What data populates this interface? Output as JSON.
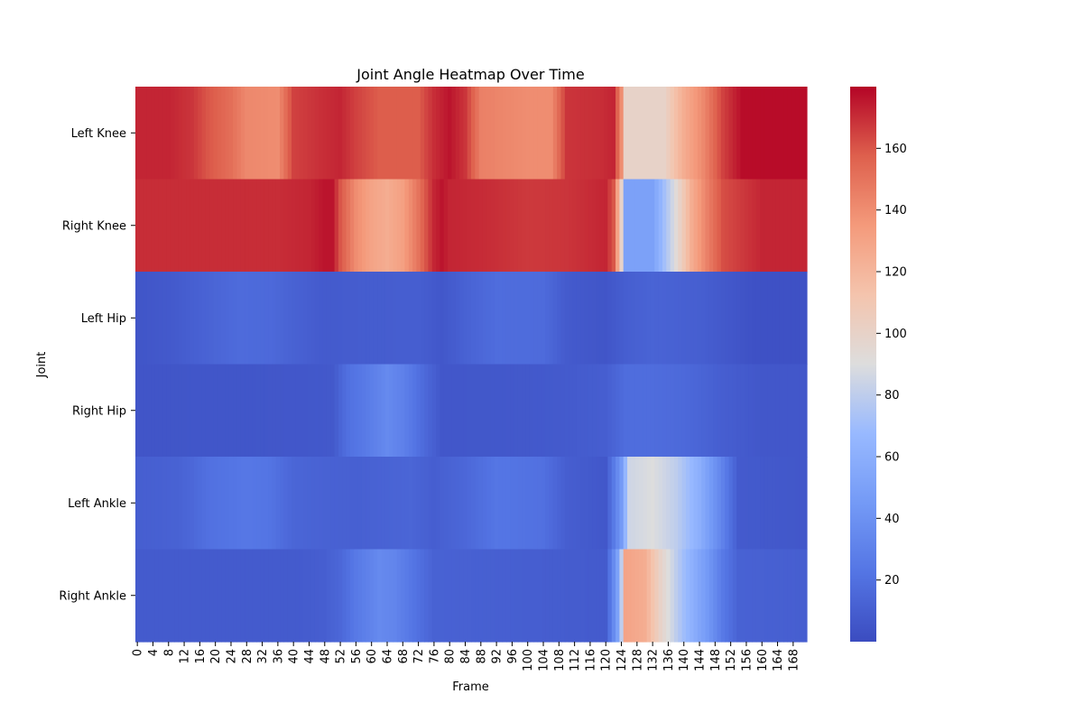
{
  "chart_data": {
    "type": "heatmap",
    "title": "Joint Angle Heatmap Over Time",
    "xlabel": "Frame",
    "ylabel": "Joint",
    "colormap": "coolwarm",
    "colorbar": {
      "min": 0,
      "max": 180,
      "ticks": [
        20,
        40,
        60,
        80,
        100,
        120,
        140,
        160
      ]
    },
    "rows": [
      "Left Knee",
      "Right Knee",
      "Left Hip",
      "Right Hip",
      "Left Ankle",
      "Right Ankle"
    ],
    "frame_count": 172,
    "x_tick_step": 4,
    "profiles": [
      {
        "row": "Left Knee",
        "anchors": [
          [
            0,
            172
          ],
          [
            8,
            172
          ],
          [
            14,
            168
          ],
          [
            18,
            160
          ],
          [
            24,
            152
          ],
          [
            28,
            142
          ],
          [
            36,
            140
          ],
          [
            40,
            165
          ],
          [
            48,
            170
          ],
          [
            52,
            172
          ],
          [
            56,
            165
          ],
          [
            62,
            158
          ],
          [
            72,
            158
          ],
          [
            76,
            170
          ],
          [
            80,
            176
          ],
          [
            84,
            168
          ],
          [
            88,
            145
          ],
          [
            100,
            140
          ],
          [
            106,
            140
          ],
          [
            110,
            168
          ],
          [
            119,
            170
          ],
          [
            122,
            172
          ],
          [
            124,
            140
          ],
          [
            125,
            100
          ],
          [
            135,
            100
          ],
          [
            140,
            125
          ],
          [
            145,
            142
          ],
          [
            150,
            165
          ],
          [
            155,
            178
          ],
          [
            171,
            178
          ]
        ]
      },
      {
        "row": "Right Knee",
        "anchors": [
          [
            0,
            170
          ],
          [
            36,
            170
          ],
          [
            44,
            172
          ],
          [
            48,
            176
          ],
          [
            50,
            176
          ],
          [
            52,
            160
          ],
          [
            56,
            140
          ],
          [
            60,
            130
          ],
          [
            64,
            125
          ],
          [
            68,
            132
          ],
          [
            72,
            150
          ],
          [
            76,
            172
          ],
          [
            78,
            176
          ],
          [
            80,
            172
          ],
          [
            90,
            170
          ],
          [
            100,
            167
          ],
          [
            110,
            168
          ],
          [
            120,
            172
          ],
          [
            122,
            160
          ],
          [
            124,
            100
          ],
          [
            125,
            50
          ],
          [
            132,
            50
          ],
          [
            137,
            85
          ],
          [
            142,
            125
          ],
          [
            146,
            145
          ],
          [
            150,
            162
          ],
          [
            160,
            172
          ],
          [
            171,
            172
          ]
        ]
      },
      {
        "row": "Left Hip",
        "anchors": [
          [
            0,
            5
          ],
          [
            10,
            8
          ],
          [
            20,
            14
          ],
          [
            26,
            17
          ],
          [
            34,
            16
          ],
          [
            40,
            12
          ],
          [
            48,
            8
          ],
          [
            56,
            9
          ],
          [
            72,
            10
          ],
          [
            78,
            6
          ],
          [
            84,
            12
          ],
          [
            92,
            18
          ],
          [
            104,
            17
          ],
          [
            110,
            8
          ],
          [
            120,
            5
          ],
          [
            125,
            10
          ],
          [
            132,
            13
          ],
          [
            145,
            10
          ],
          [
            152,
            6
          ],
          [
            158,
            3
          ],
          [
            171,
            3
          ]
        ]
      },
      {
        "row": "Right Hip",
        "anchors": [
          [
            0,
            5
          ],
          [
            40,
            6
          ],
          [
            50,
            7
          ],
          [
            54,
            20
          ],
          [
            58,
            25
          ],
          [
            64,
            35
          ],
          [
            68,
            30
          ],
          [
            74,
            15
          ],
          [
            78,
            6
          ],
          [
            100,
            7
          ],
          [
            110,
            8
          ],
          [
            120,
            10
          ],
          [
            125,
            18
          ],
          [
            132,
            18
          ],
          [
            140,
            16
          ],
          [
            150,
            10
          ],
          [
            160,
            6
          ],
          [
            171,
            6
          ]
        ]
      },
      {
        "row": "Left Ankle",
        "anchors": [
          [
            0,
            10
          ],
          [
            10,
            12
          ],
          [
            14,
            15
          ],
          [
            18,
            20
          ],
          [
            28,
            24
          ],
          [
            34,
            22
          ],
          [
            40,
            14
          ],
          [
            48,
            12
          ],
          [
            56,
            11
          ],
          [
            70,
            14
          ],
          [
            76,
            10
          ],
          [
            84,
            15
          ],
          [
            92,
            23
          ],
          [
            104,
            20
          ],
          [
            110,
            10
          ],
          [
            120,
            6
          ],
          [
            124,
            45
          ],
          [
            126,
            85
          ],
          [
            132,
            90
          ],
          [
            138,
            80
          ],
          [
            144,
            60
          ],
          [
            150,
            30
          ],
          [
            154,
            8
          ],
          [
            171,
            6
          ]
        ]
      },
      {
        "row": "Right Ankle",
        "anchors": [
          [
            0,
            8
          ],
          [
            40,
            8
          ],
          [
            48,
            10
          ],
          [
            52,
            15
          ],
          [
            56,
            25
          ],
          [
            62,
            35
          ],
          [
            66,
            32
          ],
          [
            72,
            20
          ],
          [
            76,
            12
          ],
          [
            100,
            10
          ],
          [
            110,
            9
          ],
          [
            120,
            8
          ],
          [
            123,
            50
          ],
          [
            124,
            80
          ],
          [
            125,
            130
          ],
          [
            130,
            125
          ],
          [
            134,
            100
          ],
          [
            140,
            70
          ],
          [
            146,
            45
          ],
          [
            150,
            25
          ],
          [
            154,
            12
          ],
          [
            171,
            10
          ]
        ]
      }
    ]
  }
}
